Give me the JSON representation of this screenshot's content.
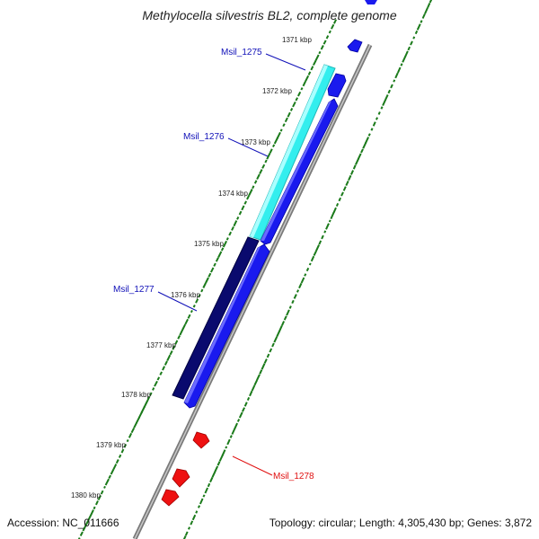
{
  "title": "Methylocella silvestris BL2, complete genome",
  "accession": "Accession: NC_011666",
  "topology": "Topology: circular; Length: 4,305,430 bp; Genes: 3,872",
  "ticks": [
    "1371 kbp",
    "1372 kbp",
    "1373 kbp",
    "1374 kbp",
    "1375 kbp",
    "1376 kbp",
    "1377 kbp",
    "1378 kbp",
    "1379 kbp",
    "1380 kbp"
  ],
  "genes": [
    {
      "label": "Msil_1275",
      "color": "#1010b8"
    },
    {
      "label": "Msil_1276",
      "color": "#1010b8"
    },
    {
      "label": "Msil_1277",
      "color": "#1010b8"
    },
    {
      "label": "Msil_1278",
      "color": "#e01010"
    }
  ],
  "colors": {
    "blast_hit_light": "#33eeee",
    "blast_hit_dark": "#0a0a6e",
    "forward_gene": "#1a1aee",
    "reverse_gene": "#ee1111",
    "backbone": "#888888",
    "gc_ticks": "#1a7a1a"
  }
}
